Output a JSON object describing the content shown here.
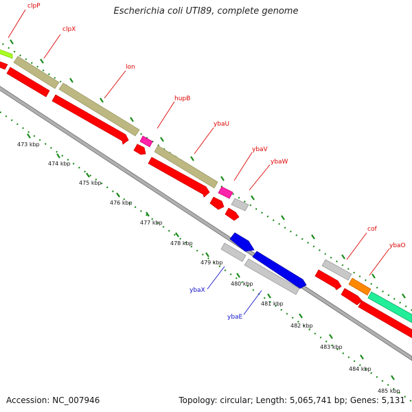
{
  "title": "Escherichia coli UTI89, complete genome",
  "footer": {
    "accession": "Accession: NC_007946",
    "summary": "Topology: circular; Length: 5,065,741 bp; Genes: 5,131"
  },
  "colors": {
    "backbone": "#808080",
    "cds": "#ff0000",
    "tick": "#1a8a1a",
    "forward_label": "#dd0000",
    "reverse_label": "#1111cc"
  },
  "ticks": [
    {
      "label": "473 kbp"
    },
    {
      "label": "474 kbp"
    },
    {
      "label": "475 kbp"
    },
    {
      "label": "476 kbp"
    },
    {
      "label": "477 kbp"
    },
    {
      "label": "478 kbp"
    },
    {
      "label": "479 kbp"
    },
    {
      "label": "480 kbp"
    },
    {
      "label": "481 kbp"
    },
    {
      "label": "482 kbp"
    },
    {
      "label": "483 kbp"
    },
    {
      "label": "484 kbp"
    },
    {
      "label": "485 kbp"
    }
  ],
  "genes": [
    {
      "name": "clpP",
      "strand": "forward",
      "color": "#aaff22"
    },
    {
      "name": "clpX",
      "strand": "forward",
      "color": "#bdb882"
    },
    {
      "name": "lon",
      "strand": "forward",
      "color": "#bdb882"
    },
    {
      "name": "hupB",
      "strand": "forward",
      "color": "#ff22aa"
    },
    {
      "name": "ybaU",
      "strand": "forward",
      "color": "#bdb882"
    },
    {
      "name": "ybaV",
      "strand": "forward",
      "color": "#ff22aa"
    },
    {
      "name": "ybaW",
      "strand": "forward",
      "color": "#c8c8c8"
    },
    {
      "name": "ybaX",
      "strand": "reverse",
      "color": "#0000ee"
    },
    {
      "name": "ybaE",
      "strand": "reverse",
      "color": "#c8c8c8"
    },
    {
      "name": "cof",
      "strand": "forward",
      "color": "#c8c8c8"
    },
    {
      "name": "ybaO",
      "strand": "forward",
      "color": "#ff8800"
    }
  ]
}
